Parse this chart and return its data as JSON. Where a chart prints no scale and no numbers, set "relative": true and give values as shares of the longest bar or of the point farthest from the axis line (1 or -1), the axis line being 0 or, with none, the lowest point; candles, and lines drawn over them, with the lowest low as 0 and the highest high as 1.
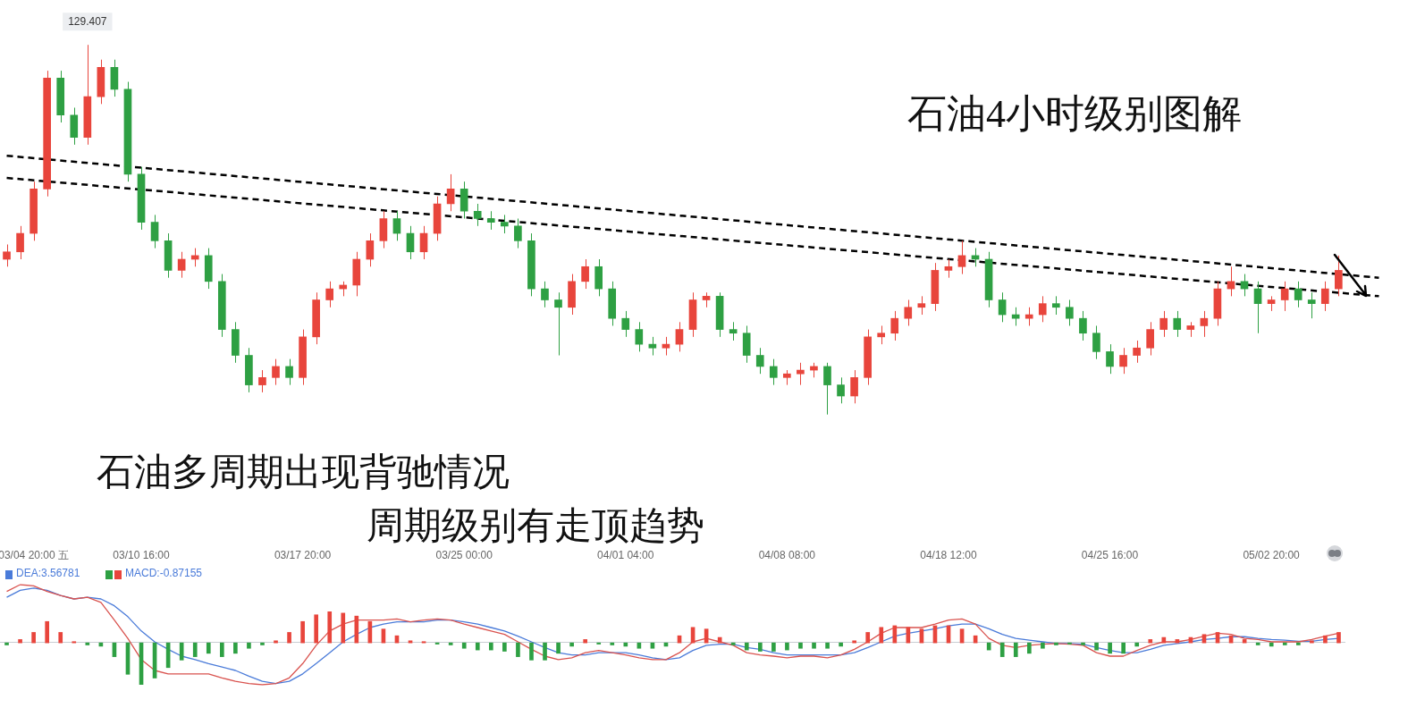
{
  "chart_data": [
    {
      "type": "candlestick",
      "title": "石油4小时级别图解",
      "annotations": [
        {
          "text": "129.407",
          "y": 1
        },
        "石油多周期出现背驰情况",
        "周期级别有走顶趋势"
      ],
      "relative": true,
      "tick_labels": "x",
      "categories": [
        null,
        null,
        "03/04 20:00 五",
        null,
        null,
        null,
        null,
        null,
        null,
        null,
        "03/10 16:00",
        null,
        null,
        null,
        null,
        null,
        null,
        null,
        null,
        null,
        null,
        null,
        "03/17 20:00",
        null,
        null,
        null,
        null,
        null,
        null,
        null,
        null,
        null,
        null,
        null,
        "03/25 00:00",
        null,
        null,
        null,
        null,
        null,
        null,
        null,
        null,
        null,
        null,
        null,
        "04/01 04:00",
        null,
        null,
        null,
        null,
        null,
        null,
        null,
        null,
        null,
        null,
        null,
        "04/08 08:00",
        null,
        null,
        null,
        null,
        null,
        null,
        null,
        null,
        null,
        null,
        null,
        "04/18 12:00",
        null,
        null,
        null,
        null,
        null,
        null,
        null,
        null,
        null,
        null,
        null,
        "04/25 16:00",
        null,
        null,
        null,
        null,
        null,
        null,
        null,
        null,
        null,
        null,
        null,
        "05/02 20:00",
        null,
        null,
        null,
        null,
        null,
        null,
        null,
        null
      ],
      "ohlc": [
        [
          0.42,
          0.46,
          0.4,
          0.44
        ],
        [
          0.44,
          0.51,
          0.42,
          0.49
        ],
        [
          0.49,
          0.63,
          0.47,
          0.61
        ],
        [
          0.61,
          0.93,
          0.59,
          0.91
        ],
        [
          0.91,
          0.93,
          0.79,
          0.81
        ],
        [
          0.81,
          0.83,
          0.73,
          0.75
        ],
        [
          0.75,
          1,
          0.73,
          0.86
        ],
        [
          0.86,
          0.96,
          0.84,
          0.94
        ],
        [
          0.94,
          0.96,
          0.86,
          0.88
        ],
        [
          0.88,
          0.9,
          0.63,
          0.65
        ],
        [
          0.65,
          0.67,
          0.5,
          0.52
        ],
        [
          0.52,
          0.54,
          0.45,
          0.47
        ],
        [
          0.47,
          0.49,
          0.37,
          0.39
        ],
        [
          0.39,
          0.44,
          0.37,
          0.42
        ],
        [
          0.42,
          0.45,
          0.4,
          0.43
        ],
        [
          0.43,
          0.45,
          0.34,
          0.36
        ],
        [
          0.36,
          0.38,
          0.21,
          0.23
        ],
        [
          0.23,
          0.25,
          0.14,
          0.16
        ],
        [
          0.16,
          0.18,
          0.06,
          0.08
        ],
        [
          0.08,
          0.12,
          0.06,
          0.1
        ],
        [
          0.1,
          0.15,
          0.08,
          0.13
        ],
        [
          0.13,
          0.15,
          0.08,
          0.1
        ],
        [
          0.1,
          0.23,
          0.08,
          0.21
        ],
        [
          0.21,
          0.33,
          0.19,
          0.31
        ],
        [
          0.31,
          0.36,
          0.29,
          0.34
        ],
        [
          0.34,
          0.36,
          0.32,
          0.35
        ],
        [
          0.35,
          0.44,
          0.32,
          0.42
        ],
        [
          0.42,
          0.49,
          0.4,
          0.47
        ],
        [
          0.47,
          0.55,
          0.45,
          0.53
        ],
        [
          0.53,
          0.55,
          0.47,
          0.49
        ],
        [
          0.49,
          0.51,
          0.42,
          0.44
        ],
        [
          0.44,
          0.51,
          0.42,
          0.49
        ],
        [
          0.49,
          0.59,
          0.47,
          0.57
        ],
        [
          0.57,
          0.65,
          0.55,
          0.61
        ],
        [
          0.61,
          0.63,
          0.53,
          0.55
        ],
        [
          0.55,
          0.57,
          0.51,
          0.53
        ],
        [
          0.53,
          0.55,
          0.5,
          0.52
        ],
        [
          0.52,
          0.54,
          0.49,
          0.51
        ],
        [
          0.51,
          0.53,
          0.45,
          0.47
        ],
        [
          0.47,
          0.49,
          0.32,
          0.34
        ],
        [
          0.34,
          0.36,
          0.29,
          0.31
        ],
        [
          0.31,
          0.33,
          0.16,
          0.29
        ],
        [
          0.29,
          0.38,
          0.27,
          0.36
        ],
        [
          0.36,
          0.42,
          0.34,
          0.4
        ],
        [
          0.4,
          0.42,
          0.32,
          0.34
        ],
        [
          0.34,
          0.36,
          0.24,
          0.26
        ],
        [
          0.26,
          0.28,
          0.21,
          0.23
        ],
        [
          0.23,
          0.25,
          0.17,
          0.19
        ],
        [
          0.19,
          0.21,
          0.16,
          0.18
        ],
        [
          0.18,
          0.21,
          0.16,
          0.19
        ],
        [
          0.19,
          0.25,
          0.17,
          0.23
        ],
        [
          0.23,
          0.33,
          0.21,
          0.31
        ],
        [
          0.31,
          0.33,
          0.29,
          0.32
        ],
        [
          0.32,
          0.33,
          0.21,
          0.23
        ],
        [
          0.23,
          0.25,
          0.2,
          0.22
        ],
        [
          0.22,
          0.24,
          0.14,
          0.16
        ],
        [
          0.16,
          0.18,
          0.11,
          0.13
        ],
        [
          0.13,
          0.15,
          0.08,
          0.1
        ],
        [
          0.1,
          0.12,
          0.08,
          0.11
        ],
        [
          0.11,
          0.14,
          0.08,
          0.12
        ],
        [
          0.12,
          0.14,
          0.1,
          0.13
        ],
        [
          0.13,
          0.14,
          0,
          0.08
        ],
        [
          0.08,
          0.1,
          0.03,
          0.05
        ],
        [
          0.05,
          0.12,
          0.03,
          0.1
        ],
        [
          0.1,
          0.23,
          0.08,
          0.21
        ],
        [
          0.21,
          0.24,
          0.19,
          0.22
        ],
        [
          0.22,
          0.28,
          0.2,
          0.26
        ],
        [
          0.26,
          0.31,
          0.24,
          0.29
        ],
        [
          0.29,
          0.32,
          0.27,
          0.3
        ],
        [
          0.3,
          0.41,
          0.28,
          0.39
        ],
        [
          0.39,
          0.42,
          0.37,
          0.4
        ],
        [
          0.4,
          0.47,
          0.38,
          0.43
        ],
        [
          0.43,
          0.45,
          0.4,
          0.42
        ],
        [
          0.42,
          0.44,
          0.29,
          0.31
        ],
        [
          0.31,
          0.33,
          0.25,
          0.27
        ],
        [
          0.27,
          0.29,
          0.24,
          0.26
        ],
        [
          0.26,
          0.29,
          0.24,
          0.27
        ],
        [
          0.27,
          0.32,
          0.25,
          0.3
        ],
        [
          0.3,
          0.32,
          0.27,
          0.29
        ],
        [
          0.29,
          0.31,
          0.24,
          0.26
        ],
        [
          0.26,
          0.28,
          0.2,
          0.22
        ],
        [
          0.22,
          0.24,
          0.15,
          0.17
        ],
        [
          0.17,
          0.19,
          0.11,
          0.13
        ],
        [
          0.13,
          0.18,
          0.11,
          0.16
        ],
        [
          0.16,
          0.2,
          0.14,
          0.18
        ],
        [
          0.18,
          0.25,
          0.16,
          0.23
        ],
        [
          0.23,
          0.28,
          0.21,
          0.26
        ],
        [
          0.26,
          0.28,
          0.21,
          0.23
        ],
        [
          0.23,
          0.25,
          0.21,
          0.24
        ],
        [
          0.24,
          0.28,
          0.21,
          0.26
        ],
        [
          0.26,
          0.36,
          0.24,
          0.34
        ],
        [
          0.34,
          0.4,
          0.32,
          0.36
        ],
        [
          0.36,
          0.38,
          0.32,
          0.34
        ],
        [
          0.34,
          0.36,
          0.22,
          0.3
        ],
        [
          0.3,
          0.32,
          0.28,
          0.31
        ],
        [
          0.31,
          0.36,
          0.28,
          0.34
        ],
        [
          0.34,
          0.36,
          0.29,
          0.31
        ],
        [
          0.31,
          0.33,
          0.26,
          0.3
        ],
        [
          0.3,
          0.36,
          0.28,
          0.34
        ],
        [
          0.34,
          0.43,
          0.32,
          0.39
        ],
        null,
        null,
        null
      ],
      "series": [
        {
          "type": "line",
          "color": "#000000",
          "line_style": "dashed",
          "values": [
            0.7,
            null,
            null,
            null,
            null,
            null,
            null,
            null,
            null,
            null,
            null,
            null,
            null,
            null,
            null,
            null,
            null,
            null,
            null,
            null,
            null,
            null,
            null,
            null,
            null,
            null,
            null,
            null,
            null,
            null,
            null,
            null,
            null,
            null,
            null,
            null,
            null,
            null,
            null,
            null,
            null,
            null,
            null,
            null,
            null,
            null,
            null,
            null,
            null,
            null,
            null,
            null,
            null,
            null,
            null,
            null,
            null,
            null,
            null,
            null,
            null,
            null,
            null,
            null,
            null,
            null,
            null,
            null,
            null,
            null,
            null,
            null,
            null,
            null,
            null,
            null,
            null,
            null,
            null,
            null,
            null,
            null,
            null,
            null,
            null,
            null,
            null,
            null,
            null,
            null,
            null,
            null,
            null,
            null,
            null,
            null,
            null,
            null,
            null,
            null,
            null,
            null,
            0.37
          ]
        },
        {
          "type": "line",
          "color": "#000000",
          "line_style": "dashed",
          "values": [
            0.64,
            null,
            null,
            null,
            null,
            null,
            null,
            null,
            null,
            null,
            null,
            null,
            null,
            null,
            null,
            null,
            null,
            null,
            null,
            null,
            null,
            null,
            null,
            null,
            null,
            null,
            null,
            null,
            null,
            null,
            null,
            null,
            null,
            null,
            null,
            null,
            null,
            null,
            null,
            null,
            null,
            null,
            null,
            null,
            null,
            null,
            null,
            null,
            null,
            null,
            null,
            null,
            null,
            null,
            null,
            null,
            null,
            null,
            null,
            null,
            null,
            null,
            null,
            null,
            null,
            null,
            null,
            null,
            null,
            null,
            null,
            null,
            null,
            null,
            null,
            null,
            null,
            null,
            null,
            null,
            null,
            null,
            null,
            null,
            null,
            null,
            null,
            null,
            null,
            null,
            null,
            null,
            null,
            null,
            null,
            null,
            null,
            null,
            null,
            null,
            null,
            null,
            0.32
          ]
        }
      ]
    },
    {
      "type": "line",
      "relative": true,
      "tick_labels": false,
      "legend": "top left",
      "categories": [
        null,
        null,
        null,
        null,
        null,
        null,
        null,
        null,
        null,
        null,
        null,
        null,
        null,
        null,
        null,
        null,
        null,
        null,
        null,
        null,
        null,
        null,
        null,
        null,
        null,
        null,
        null,
        null,
        null,
        null,
        null,
        null,
        null,
        null,
        null,
        null,
        null,
        null,
        null,
        null,
        null,
        null,
        null,
        null,
        null,
        null,
        null,
        null,
        null,
        null,
        null,
        null,
        null,
        null,
        null,
        null,
        null,
        null,
        null,
        null,
        null,
        null,
        null,
        null,
        null,
        null,
        null,
        null,
        null,
        null,
        null,
        null,
        null,
        null,
        null,
        null,
        null,
        null,
        null,
        null,
        null,
        null,
        null,
        null,
        null,
        null,
        null,
        null,
        null,
        null,
        null,
        null,
        null,
        null,
        null,
        null,
        null,
        null,
        null,
        null
      ],
      "series": [
        {
          "type": "line",
          "color": "#d9534f",
          "values": [
            0.88,
            1,
            0.98,
            0.88,
            0.81,
            0.75,
            0.78,
            0.69,
            0.38,
            0.06,
            -0.31,
            -0.5,
            -0.56,
            -0.56,
            -0.56,
            -0.56,
            -0.63,
            -0.69,
            -0.73,
            -0.75,
            -0.73,
            -0.63,
            -0.38,
            -0.06,
            0.19,
            0.31,
            0.38,
            0.38,
            0.38,
            0.4,
            0.35,
            0.38,
            0.4,
            0.38,
            0.31,
            0.25,
            0.19,
            0.13,
            0,
            -0.13,
            -0.25,
            -0.31,
            -0.28,
            -0.19,
            -0.15,
            -0.19,
            -0.23,
            -0.28,
            -0.31,
            -0.31,
            -0.19,
            0,
            0.06,
            0,
            -0.06,
            -0.19,
            -0.23,
            -0.25,
            -0.28,
            -0.25,
            -0.25,
            -0.28,
            -0.23,
            -0.13,
            0,
            0.15,
            0.25,
            0.25,
            0.25,
            0.31,
            0.38,
            0.4,
            0.31,
            0.06,
            -0.06,
            -0.1,
            -0.06,
            -0.04,
            -0.03,
            -0.04,
            -0.06,
            -0.19,
            -0.25,
            -0.25,
            -0.15,
            -0.06,
            0,
            0,
            0.04,
            0.1,
            0.15,
            0.13,
            0.06,
            0.04,
            0,
            0,
            0,
            0.04,
            0.1,
            0.15
          ]
        },
        {
          "type": "line",
          "name": "DEA:3.56781",
          "color": "#4a7bd9",
          "values": [
            0.78,
            0.9,
            0.94,
            0.9,
            0.81,
            0.75,
            0.78,
            0.75,
            0.63,
            0.44,
            0.19,
            0,
            -0.13,
            -0.25,
            -0.31,
            -0.38,
            -0.44,
            -0.5,
            -0.6,
            -0.69,
            -0.73,
            -0.69,
            -0.56,
            -0.38,
            -0.19,
            0,
            0.13,
            0.25,
            0.31,
            0.35,
            0.35,
            0.35,
            0.38,
            0.38,
            0.35,
            0.31,
            0.25,
            0.19,
            0.1,
            0,
            -0.1,
            -0.19,
            -0.23,
            -0.23,
            -0.19,
            -0.19,
            -0.19,
            -0.23,
            -0.28,
            -0.31,
            -0.28,
            -0.15,
            -0.06,
            -0.04,
            -0.04,
            -0.1,
            -0.13,
            -0.19,
            -0.23,
            -0.23,
            -0.23,
            -0.23,
            -0.23,
            -0.19,
            -0.1,
            0,
            0.1,
            0.15,
            0.19,
            0.23,
            0.28,
            0.31,
            0.31,
            0.23,
            0.13,
            0.06,
            0.03,
            0,
            -0.03,
            -0.03,
            -0.04,
            -0.1,
            -0.15,
            -0.19,
            -0.19,
            -0.13,
            -0.06,
            -0.03,
            0,
            0.04,
            0.06,
            0.09,
            0.09,
            0.06,
            0.04,
            0.03,
            0.01,
            0.01,
            0.04,
            0.06
          ]
        }
      ]
    },
    {
      "type": "bar",
      "relative": true,
      "tick_labels": false,
      "legend": "top left",
      "categories": [
        null,
        null,
        null,
        null,
        null,
        null,
        null,
        null,
        null,
        null,
        null,
        null,
        null,
        null,
        null,
        null,
        null,
        null,
        null,
        null,
        null,
        null,
        null,
        null,
        null,
        null,
        null,
        null,
        null,
        null,
        null,
        null,
        null,
        null,
        null,
        null,
        null,
        null,
        null,
        null,
        null,
        null,
        null,
        null,
        null,
        null,
        null,
        null,
        null,
        null,
        null,
        null,
        null,
        null,
        null,
        null,
        null,
        null,
        null,
        null,
        null,
        null,
        null,
        null,
        null,
        null,
        null,
        null,
        null,
        null,
        null,
        null,
        null,
        null,
        null,
        null,
        null,
        null,
        null,
        null,
        null,
        null,
        null,
        null,
        null,
        null,
        null,
        null,
        null,
        null,
        null,
        null,
        null,
        null,
        null,
        null,
        null,
        null,
        null,
        null
      ],
      "series": [
        {
          "name": "MACD:-0.87155",
          "values": [
            -0.05,
            0.08,
            0.25,
            0.51,
            0.25,
            0.03,
            -0.05,
            -0.08,
            -0.33,
            -0.75,
            -1,
            -0.84,
            -0.59,
            -0.41,
            -0.33,
            -0.25,
            -0.33,
            -0.25,
            -0.13,
            -0.05,
            0.05,
            0.25,
            0.51,
            0.67,
            0.75,
            0.71,
            0.64,
            0.51,
            0.33,
            0.17,
            0.05,
            0.03,
            -0.03,
            -0.05,
            -0.13,
            -0.17,
            -0.17,
            -0.2,
            -0.33,
            -0.41,
            -0.41,
            -0.25,
            -0.08,
            0.08,
            -0.03,
            -0.05,
            -0.08,
            -0.13,
            -0.13,
            -0.08,
            0.17,
            0.37,
            0.33,
            0.13,
            -0.05,
            -0.17,
            -0.2,
            -0.2,
            -0.17,
            -0.13,
            -0.13,
            -0.13,
            -0.08,
            0.05,
            0.25,
            0.37,
            0.41,
            0.37,
            0.33,
            0.41,
            0.41,
            0.33,
            0.17,
            -0.17,
            -0.33,
            -0.33,
            -0.25,
            -0.13,
            -0.05,
            -0.03,
            -0.05,
            -0.17,
            -0.25,
            -0.25,
            -0.08,
            0.08,
            0.13,
            0.08,
            0.13,
            0.2,
            0.25,
            0.17,
            0.08,
            -0.05,
            -0.08,
            -0.05,
            -0.05,
            0.05,
            0.17,
            0.25
          ],
          "colors": [
            "#2ea043",
            "#e8453c",
            "#e8453c",
            "#e8453c",
            "#e8453c",
            "#e8453c",
            "#2ea043",
            "#2ea043",
            "#2ea043",
            "#2ea043",
            "#2ea043",
            "#2ea043",
            "#2ea043",
            "#2ea043",
            "#2ea043",
            "#2ea043",
            "#2ea043",
            "#2ea043",
            "#2ea043",
            "#2ea043",
            "#e8453c",
            "#e8453c",
            "#e8453c",
            "#e8453c",
            "#e8453c",
            "#e8453c",
            "#e8453c",
            "#e8453c",
            "#e8453c",
            "#e8453c",
            "#e8453c",
            "#e8453c",
            "#2ea043",
            "#2ea043",
            "#2ea043",
            "#2ea043",
            "#2ea043",
            "#2ea043",
            "#2ea043",
            "#2ea043",
            "#2ea043",
            "#2ea043",
            "#2ea043",
            "#e8453c",
            "#2ea043",
            "#2ea043",
            "#2ea043",
            "#2ea043",
            "#2ea043",
            "#2ea043",
            "#e8453c",
            "#e8453c",
            "#e8453c",
            "#e8453c",
            "#2ea043",
            "#2ea043",
            "#2ea043",
            "#2ea043",
            "#2ea043",
            "#2ea043",
            "#2ea043",
            "#2ea043",
            "#2ea043",
            "#e8453c",
            "#e8453c",
            "#e8453c",
            "#e8453c",
            "#e8453c",
            "#e8453c",
            "#e8453c",
            "#e8453c",
            "#e8453c",
            "#e8453c",
            "#2ea043",
            "#2ea043",
            "#2ea043",
            "#2ea043",
            "#2ea043",
            "#2ea043",
            "#2ea043",
            "#2ea043",
            "#2ea043",
            "#2ea043",
            "#2ea043",
            "#2ea043",
            "#e8453c",
            "#e8453c",
            "#e8453c",
            "#e8453c",
            "#e8453c",
            "#e8453c",
            "#e8453c",
            "#e8453c",
            "#2ea043",
            "#2ea043",
            "#2ea043",
            "#2ea043",
            "#e8453c",
            "#e8453c",
            "#e8453c"
          ]
        }
      ]
    }
  ]
}
